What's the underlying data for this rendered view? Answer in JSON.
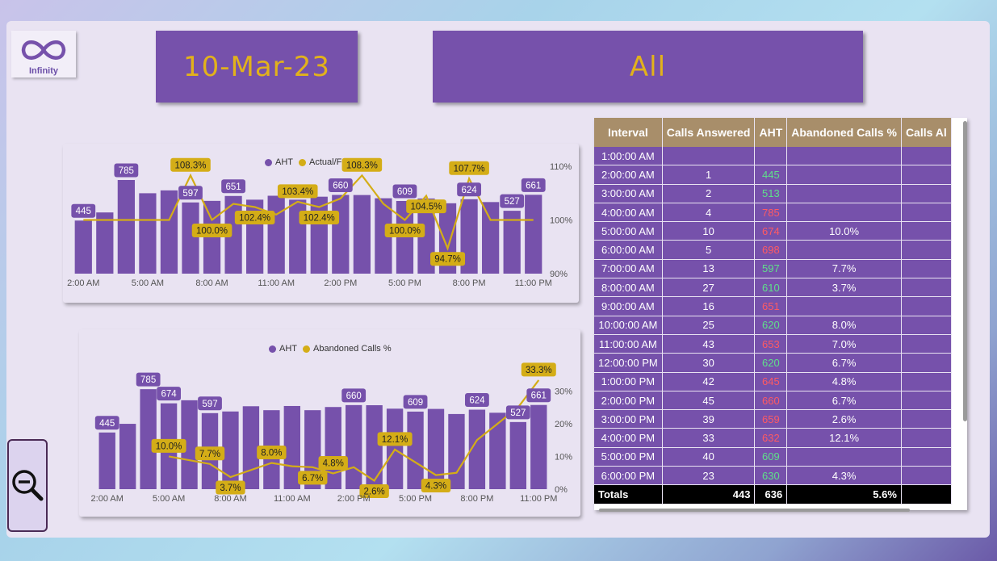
{
  "header": {
    "logo_label": "Infinity",
    "date": "10-Mar-23",
    "filter": "All"
  },
  "colors": {
    "purple": "#7651ab",
    "gold": "#d4ad17",
    "good": "#5fe08a",
    "bad": "#ff5a63"
  },
  "icons": {
    "logo": "infinity-icon",
    "zoom": "zoom-out-icon"
  },
  "chart_data": [
    {
      "type": "bar",
      "legend": [
        "AHT",
        "Actual/Forecast"
      ],
      "categories": [
        "2:00 AM",
        "3:00 AM",
        "4:00 AM",
        "5:00 AM",
        "6:00 AM",
        "7:00 AM",
        "8:00 AM",
        "9:00 AM",
        "10:00 AM",
        "11:00 AM",
        "12:00 PM",
        "1:00 PM",
        "2:00 PM",
        "3:00 PM",
        "4:00 PM",
        "5:00 PM",
        "6:00 PM",
        "7:00 PM",
        "8:00 PM",
        "9:00 PM",
        "10:00 PM",
        "11:00 PM"
      ],
      "x_tick_labels": [
        "2:00 AM",
        "5:00 AM",
        "8:00 AM",
        "11:00 AM",
        "2:00 PM",
        "5:00 PM",
        "8:00 PM",
        "11:00 PM"
      ],
      "series": [
        {
          "name": "AHT",
          "values": [
            445,
            513,
            785,
            674,
            698,
            597,
            610,
            651,
            620,
            653,
            620,
            645,
            660,
            659,
            632,
            609,
            630,
            590,
            624,
            600,
            527,
            661
          ]
        },
        {
          "name": "Actual/Forecast",
          "values": [
            100.0,
            100.0,
            100.0,
            100.0,
            100.0,
            108.3,
            100.0,
            103.0,
            102.4,
            101.0,
            103.4,
            102.4,
            104.0,
            108.3,
            103.0,
            100.0,
            104.5,
            94.7,
            107.7,
            100.0,
            100.0,
            100.0
          ],
          "axis": "right"
        }
      ],
      "bar_labels": [
        [
          0,
          "445"
        ],
        [
          2,
          "785"
        ],
        [
          5,
          "597"
        ],
        [
          7,
          "651"
        ],
        [
          12,
          "660"
        ],
        [
          15,
          "609"
        ],
        [
          18,
          "624"
        ],
        [
          20,
          "527"
        ],
        [
          21,
          "661"
        ]
      ],
      "line_labels": [
        [
          5,
          "108.3%"
        ],
        [
          6,
          "100.0%"
        ],
        [
          8,
          "102.4%"
        ],
        [
          10,
          "103.4%"
        ],
        [
          11,
          "102.4%"
        ],
        [
          13,
          "108.3%"
        ],
        [
          15,
          "100.0%"
        ],
        [
          16,
          "104.5%"
        ],
        [
          17,
          "94.7%"
        ],
        [
          18,
          "107.7%"
        ]
      ],
      "y_left_range": [
        0,
        900
      ],
      "y_right_ticks": [
        "110%",
        "100%",
        "90%"
      ],
      "y_right_range": [
        90,
        110
      ]
    },
    {
      "type": "bar",
      "legend": [
        "AHT",
        "Abandoned Calls %"
      ],
      "categories": [
        "2:00 AM",
        "3:00 AM",
        "4:00 AM",
        "5:00 AM",
        "6:00 AM",
        "7:00 AM",
        "8:00 AM",
        "9:00 AM",
        "10:00 AM",
        "11:00 AM",
        "12:00 PM",
        "1:00 PM",
        "2:00 PM",
        "3:00 PM",
        "4:00 PM",
        "5:00 PM",
        "6:00 PM",
        "7:00 PM",
        "8:00 PM",
        "9:00 PM",
        "10:00 PM",
        "11:00 PM"
      ],
      "x_tick_labels": [
        "2:00 AM",
        "5:00 AM",
        "8:00 AM",
        "11:00 AM",
        "2:00 PM",
        "5:00 PM",
        "8:00 PM",
        "11:00 PM"
      ],
      "series": [
        {
          "name": "AHT",
          "values": [
            445,
            513,
            785,
            674,
            698,
            597,
            610,
            651,
            620,
            653,
            620,
            645,
            660,
            659,
            632,
            609,
            630,
            590,
            624,
            600,
            527,
            661
          ]
        },
        {
          "name": "Abandoned Calls %",
          "values": [
            null,
            null,
            null,
            10.0,
            null,
            7.7,
            3.7,
            null,
            8.0,
            7.0,
            6.7,
            4.8,
            6.7,
            2.6,
            12.1,
            null,
            4.3,
            5.0,
            15.0,
            20.0,
            25.0,
            33.3
          ],
          "axis": "right"
        }
      ],
      "bar_labels": [
        [
          0,
          "445"
        ],
        [
          2,
          "785"
        ],
        [
          3,
          "674"
        ],
        [
          5,
          "597"
        ],
        [
          12,
          "660"
        ],
        [
          15,
          "609"
        ],
        [
          18,
          "624"
        ],
        [
          20,
          "527"
        ],
        [
          21,
          "661"
        ]
      ],
      "line_labels": [
        [
          3,
          "10.0%"
        ],
        [
          5,
          "7.7%"
        ],
        [
          6,
          "3.7%"
        ],
        [
          8,
          "8.0%"
        ],
        [
          10,
          "6.7%"
        ],
        [
          11,
          "4.8%"
        ],
        [
          13,
          "2.6%"
        ],
        [
          14,
          "12.1%"
        ],
        [
          16,
          "4.3%"
        ],
        [
          21,
          "33.3%"
        ]
      ],
      "y_left_range": [
        0,
        900
      ],
      "y_right_ticks": [
        "30%",
        "20%",
        "10%",
        "0%"
      ],
      "y_right_range": [
        0,
        35
      ]
    },
    {
      "type": "table",
      "columns": [
        "Interval",
        "Calls Answered",
        "AHT",
        "Abandoned Calls %",
        "Calls Al"
      ],
      "rows": [
        [
          "1:00:00 AM",
          "",
          "",
          "",
          ""
        ],
        [
          "2:00:00 AM",
          "1",
          "445",
          "",
          ""
        ],
        [
          "3:00:00 AM",
          "2",
          "513",
          "",
          ""
        ],
        [
          "4:00:00 AM",
          "4",
          "785",
          "",
          ""
        ],
        [
          "5:00:00 AM",
          "10",
          "674",
          "10.0%",
          ""
        ],
        [
          "6:00:00 AM",
          "5",
          "698",
          "",
          ""
        ],
        [
          "7:00:00 AM",
          "13",
          "597",
          "7.7%",
          ""
        ],
        [
          "8:00:00 AM",
          "27",
          "610",
          "3.7%",
          ""
        ],
        [
          "9:00:00 AM",
          "16",
          "651",
          "",
          ""
        ],
        [
          "10:00:00 AM",
          "25",
          "620",
          "8.0%",
          ""
        ],
        [
          "11:00:00 AM",
          "43",
          "653",
          "7.0%",
          ""
        ],
        [
          "12:00:00 PM",
          "30",
          "620",
          "6.7%",
          ""
        ],
        [
          "1:00:00 PM",
          "42",
          "645",
          "4.8%",
          ""
        ],
        [
          "2:00:00 PM",
          "45",
          "660",
          "6.7%",
          ""
        ],
        [
          "3:00:00 PM",
          "39",
          "659",
          "2.6%",
          ""
        ],
        [
          "4:00:00 PM",
          "33",
          "632",
          "12.1%",
          ""
        ],
        [
          "5:00:00 PM",
          "40",
          "609",
          "",
          ""
        ],
        [
          "6:00:00 PM",
          "23",
          "630",
          "4.3%",
          ""
        ]
      ],
      "aht_status": [
        "",
        "good",
        "good",
        "bad",
        "bad",
        "bad",
        "good",
        "good",
        "bad",
        "good",
        "bad",
        "good",
        "bad",
        "bad",
        "bad",
        "bad",
        "good",
        "good"
      ],
      "totals": [
        "Totals",
        "443",
        "636",
        "5.6%",
        ""
      ]
    }
  ]
}
